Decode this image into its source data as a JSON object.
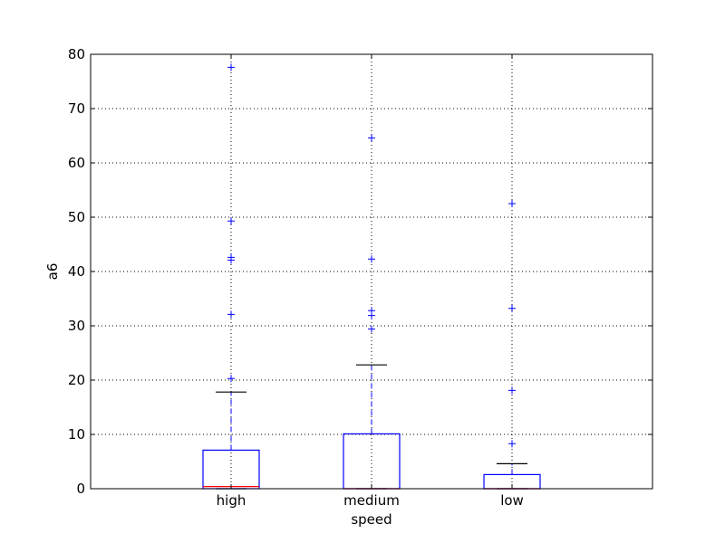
{
  "chart_data": {
    "type": "boxplot",
    "xlabel": "speed",
    "ylabel": "a6",
    "ylim": [
      0,
      80
    ],
    "yticks": [
      0,
      10,
      20,
      30,
      40,
      50,
      60,
      70,
      80
    ],
    "grid": true,
    "categories": [
      "high",
      "medium",
      "low"
    ],
    "boxes": [
      {
        "category": "high",
        "whisker_low": 0.0,
        "q1": 0.0,
        "median": 0.4,
        "q3": 7.1,
        "whisker_high": 17.8,
        "outliers": [
          20.3,
          32.1,
          42.1,
          42.6,
          49.3,
          77.6
        ]
      },
      {
        "category": "medium",
        "whisker_low": 0.0,
        "q1": 0.0,
        "median": 0.0,
        "q3": 10.1,
        "whisker_high": 22.8,
        "outliers": [
          29.4,
          31.9,
          32.8,
          42.3,
          64.6
        ]
      },
      {
        "category": "low",
        "whisker_low": 0.0,
        "q1": 0.0,
        "median": 0.0,
        "q3": 2.6,
        "whisker_high": 4.6,
        "outliers": [
          8.3,
          18.1,
          33.2,
          52.5
        ]
      }
    ],
    "colors": {
      "box": "#0000ff",
      "whisker": "#0000ff",
      "cap": "#000000",
      "median": "#ff0000",
      "outlier": "#0000ff",
      "grid": "#000000"
    }
  }
}
